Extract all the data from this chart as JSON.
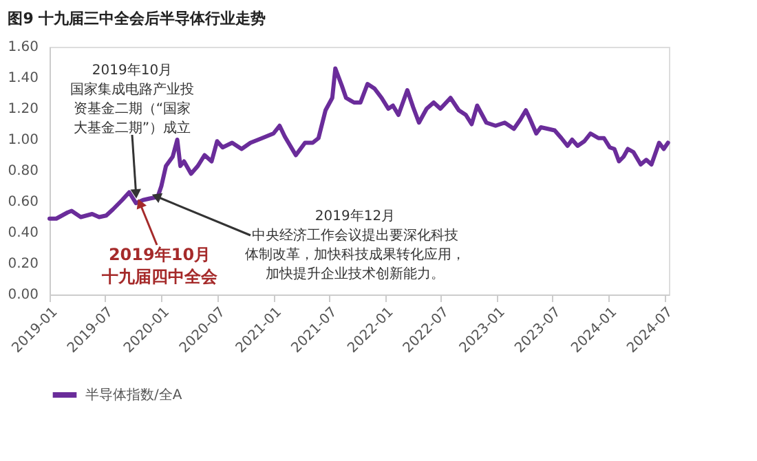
{
  "chart_data": {
    "type": "line",
    "title": "图9  十九届三中全会后半导体行业走势",
    "x": [
      "2019-01-01",
      "2019-01-23",
      "2019-03-01",
      "2019-03-14",
      "2019-04-13",
      "2019-05-20",
      "2019-06-12",
      "2019-07-05",
      "2019-07-27",
      "2019-08-26",
      "2019-09-18",
      "2019-10-10",
      "2019-11-02",
      "2019-11-24",
      "2019-12-20",
      "2020-01-01",
      "2020-01-16",
      "2020-02-07",
      "2020-02-22",
      "2020-03-03",
      "2020-03-15",
      "2020-04-07",
      "2020-04-29",
      "2020-05-21",
      "2020-06-13",
      "2020-07-01",
      "2020-07-19",
      "2020-08-19",
      "2020-09-19",
      "2020-10-18",
      "2020-11-25",
      "2021-01-01",
      "2021-01-21",
      "2021-02-07",
      "2021-03-15",
      "2021-04-14",
      "2021-05-09",
      "2021-05-28",
      "2021-06-20",
      "2021-07-12",
      "2021-07-22",
      "2021-08-12",
      "2021-08-26",
      "2021-09-21",
      "2021-10-12",
      "2021-11-04",
      "2021-11-27",
      "2021-12-20",
      "2022-01-11",
      "2022-01-26",
      "2022-02-13",
      "2022-03-14",
      "2022-04-02",
      "2022-04-21",
      "2022-05-16",
      "2022-06-08",
      "2022-06-30",
      "2022-08-02",
      "2022-08-29",
      "2022-09-21",
      "2022-10-10",
      "2022-10-28",
      "2022-11-27",
      "2022-12-27",
      "2023-01-26",
      "2023-02-25",
      "2023-03-18",
      "2023-04-05",
      "2023-04-17",
      "2023-05-09",
      "2023-05-24",
      "2023-06-16",
      "2023-07-08",
      "2023-07-30",
      "2023-08-19",
      "2023-09-03",
      "2023-09-21",
      "2023-10-13",
      "2023-11-02",
      "2023-11-28",
      "2023-12-16",
      "2024-01-04",
      "2024-01-19",
      "2024-02-03",
      "2024-02-18",
      "2024-03-03",
      "2024-03-21",
      "2024-04-14",
      "2024-05-02",
      "2024-05-19",
      "2024-06-13",
      "2024-06-28",
      "2024-07-12"
    ],
    "series": [
      {
        "name": "半导体指数/全A",
        "color": "#6a2c9a",
        "values": [
          0.49,
          0.49,
          0.53,
          0.54,
          0.5,
          0.52,
          0.5,
          0.51,
          0.55,
          0.61,
          0.66,
          0.59,
          0.61,
          0.62,
          0.63,
          0.7,
          0.83,
          0.89,
          1.0,
          0.83,
          0.86,
          0.78,
          0.83,
          0.9,
          0.86,
          0.99,
          0.95,
          0.98,
          0.94,
          0.98,
          1.01,
          1.04,
          1.09,
          1.02,
          0.9,
          0.98,
          0.98,
          1.01,
          1.19,
          1.27,
          1.46,
          1.35,
          1.27,
          1.24,
          1.24,
          1.36,
          1.33,
          1.27,
          1.2,
          1.22,
          1.16,
          1.32,
          1.21,
          1.11,
          1.2,
          1.24,
          1.2,
          1.27,
          1.19,
          1.16,
          1.1,
          1.22,
          1.11,
          1.09,
          1.11,
          1.07,
          1.13,
          1.19,
          1.14,
          1.04,
          1.08,
          1.07,
          1.06,
          1.01,
          0.96,
          1.0,
          0.96,
          0.99,
          1.04,
          1.01,
          1.01,
          0.95,
          0.94,
          0.86,
          0.89,
          0.94,
          0.92,
          0.84,
          0.87,
          0.84,
          0.98,
          0.94,
          0.98
        ]
      }
    ],
    "xlim": [
      "2019-01-01",
      "2024-07-15"
    ],
    "xticks": [
      "2019-01",
      "2019-07",
      "2020-01",
      "2020-07",
      "2021-01",
      "2021-07",
      "2022-01",
      "2022-07",
      "2023-01",
      "2023-07",
      "2024-01",
      "2024-07"
    ],
    "ylim": [
      0,
      1.6
    ],
    "yticks": [
      {
        "value": 0,
        "label": "0.00"
      },
      {
        "value": 0.2,
        "label": "0.20"
      },
      {
        "value": 0.4,
        "label": "0.40"
      },
      {
        "value": 0.6,
        "label": "0.60"
      },
      {
        "value": 0.8,
        "label": "0.80"
      },
      {
        "value": 1.0,
        "label": "1.00"
      },
      {
        "value": 1.2,
        "label": "1.20"
      },
      {
        "value": 1.4,
        "label": "1.40"
      },
      {
        "value": 1.6,
        "label": "1.60"
      }
    ],
    "grid": false,
    "legend": "bottom",
    "marker": "none",
    "line_style": "solid",
    "annotations": [
      "2019年10月",
      {
        "text": "国家集成电路产业投资基金二期（“国家大基金二期”）成立",
        "x": "2019-10-10",
        "y": 0.66
      },
      {
        "text": "2019年10月",
        "x": "2019-10-25",
        "y": 0.58
      },
      "十九届四中全会",
      "2019年12月",
      {
        "text": "中央经济工作会议提出要深化科技体制改革，加快科技成果转化应用，加快提升企业技术创新能力。",
        "x": "2019-12-20",
        "y": 0.63
      }
    ]
  }
}
